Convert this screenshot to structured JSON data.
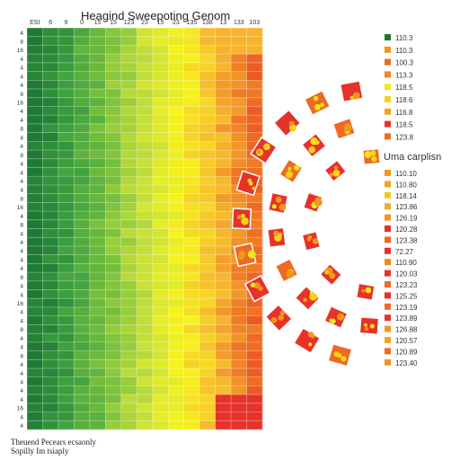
{
  "chart_data": {
    "type": "heatmap",
    "title": "Heagind Sweepoting Genom",
    "column_labels": [
      "ESI",
      "6",
      "6",
      "0",
      "15",
      "15",
      "123",
      "23",
      "15",
      "23",
      "135",
      "138",
      "13",
      "133",
      "103"
    ],
    "row_labels": [
      "4",
      "8",
      "16",
      "4",
      "4",
      "4",
      "4",
      "8",
      "16",
      "4",
      "4",
      "8",
      "4",
      "4",
      "8",
      "4",
      "4",
      "4",
      "4",
      "8",
      "16",
      "4",
      "8",
      "4",
      "4",
      "4",
      "4",
      "4",
      "8",
      "4",
      "4",
      "16",
      "4",
      "4",
      "8",
      "4",
      "4",
      "8",
      "4",
      "4",
      "4",
      "4",
      "4",
      "16",
      "4",
      "4"
    ],
    "color_scale": [
      "#1f7a35",
      "#3fa33f",
      "#7cc23c",
      "#c8e03a",
      "#f6f41c",
      "#f6b72e",
      "#ee6a22",
      "#e6322a"
    ],
    "value_range": [
      0,
      1
    ],
    "legend_top": {
      "entries": [
        {
          "label": "110.3",
          "color": "#1f7a35"
        },
        {
          "label": "110.3",
          "color": "#f0971c"
        },
        {
          "label": "100.3",
          "color": "#ee6a22"
        },
        {
          "label": "113.3",
          "color": "#f08a1e"
        },
        {
          "label": "118.5",
          "color": "#f2e61c"
        },
        {
          "label": "118.6",
          "color": "#f6d11c"
        },
        {
          "label": "116.8",
          "color": "#f0a51e"
        },
        {
          "label": "118.5",
          "color": "#e6322a"
        },
        {
          "label": "123.8",
          "color": "#ee6a22"
        }
      ]
    },
    "legend_bottom": {
      "title": "Uma carplisn",
      "entries": [
        {
          "label": "110.10",
          "color": "#f0971c"
        },
        {
          "label": "110.80",
          "color": "#f0a51e"
        },
        {
          "label": "118.14",
          "color": "#f2c81c"
        },
        {
          "label": "123.86",
          "color": "#e8b02a"
        },
        {
          "label": "126.19",
          "color": "#f0971c"
        },
        {
          "label": "120.28",
          "color": "#e6322a"
        },
        {
          "label": "123.38",
          "color": "#ee6a22"
        },
        {
          "label": "72.27",
          "color": "#e6322a"
        },
        {
          "label": "110.90",
          "color": "#f08a1e"
        },
        {
          "label": "120.03",
          "color": "#e6322a"
        },
        {
          "label": "123.23",
          "color": "#ee6a22"
        },
        {
          "label": "125.25",
          "color": "#e6322a"
        },
        {
          "label": "123.19",
          "color": "#ee6a22"
        },
        {
          "label": "123.89",
          "color": "#e6322a"
        },
        {
          "label": "126.88",
          "color": "#f0971c"
        },
        {
          "label": "120.57",
          "color": "#f0a51e"
        },
        {
          "label": "120.89",
          "color": "#ee6a22"
        },
        {
          "label": "123.40",
          "color": "#f0971c"
        }
      ]
    },
    "hexagon_colors": [
      "#ee6a22",
      "#e6322a",
      "#f0971c",
      "#f6d11c",
      "#f2e61c",
      "#ee7a22"
    ],
    "grid": true,
    "legend_position": "right"
  },
  "footer": {
    "line1": "Theuend Pecears ecsaonly",
    "line2": "Sopilly Im tsiaply"
  }
}
